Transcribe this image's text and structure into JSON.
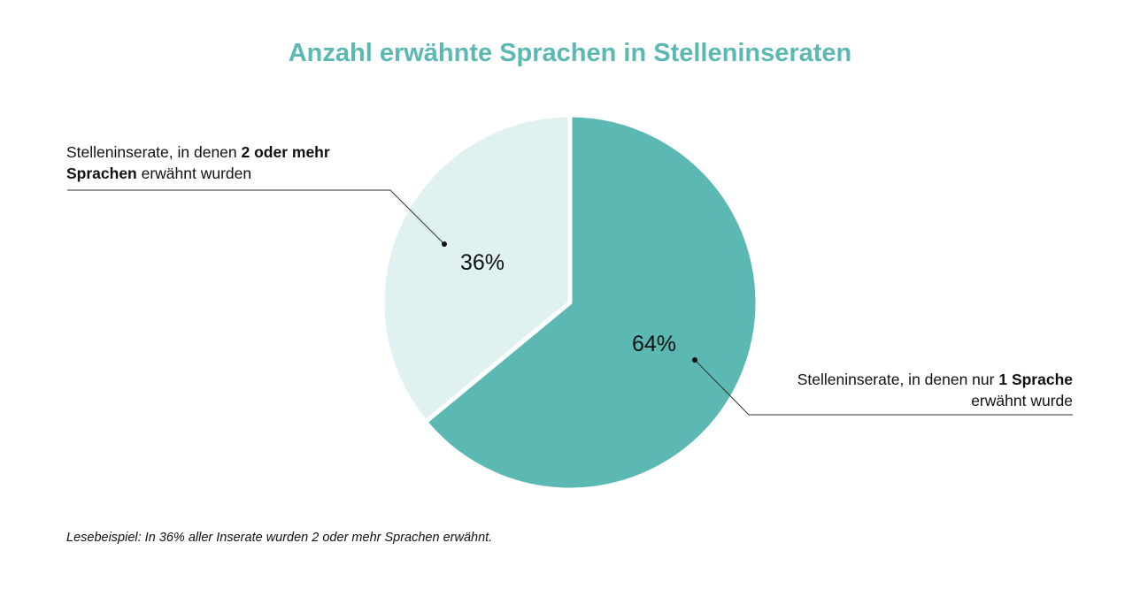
{
  "chart_data": {
    "type": "pie",
    "title": "Anzahl erwähnte Sprachen in Stelleninseraten",
    "slices": [
      {
        "label_prefix": "Stelleninserate, in denen ",
        "label_bold": "2 oder mehr Sprachen",
        "label_suffix": " erwähnt wurden",
        "value": 36,
        "value_label": "36%",
        "color": "#dff1f0"
      },
      {
        "label_prefix": "Stelleninserate, in denen nur ",
        "label_bold": "1 Sprache",
        "label_suffix": " erwähnt wurde",
        "value": 64,
        "value_label": "64%",
        "color": "#5cb8b2"
      }
    ],
    "title_color": "#5cb8b2"
  },
  "footnote": "Lesebeispiel: In 36% aller Inserate wurden 2 oder mehr Sprachen erwähnt."
}
